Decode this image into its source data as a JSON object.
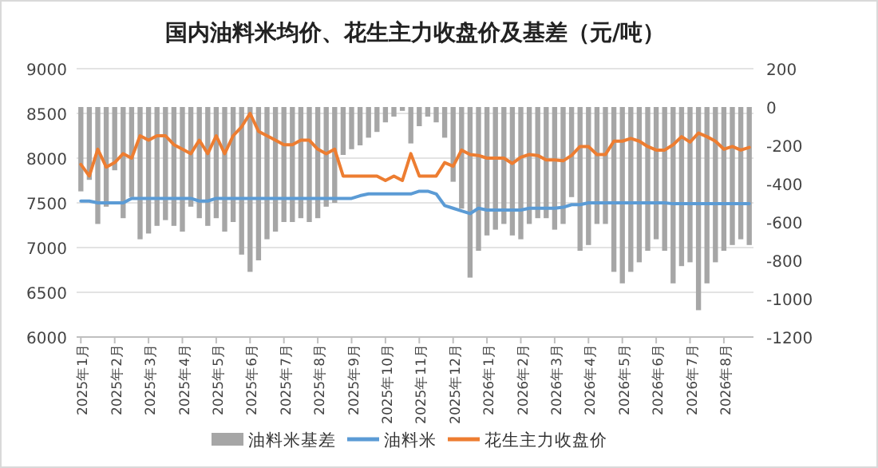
{
  "chart_data": {
    "type": "line",
    "title": "国内油料米均价、花生主力收盘价及基差（元/吨）",
    "categories": [
      "2025年1月",
      null,
      null,
      null,
      "2025年2月",
      null,
      null,
      null,
      "2025年3月",
      null,
      null,
      null,
      "2025年4月",
      null,
      null,
      null,
      "2025年5月",
      null,
      null,
      null,
      "2025年6月",
      null,
      null,
      null,
      "2025年7月",
      null,
      null,
      null,
      "2025年8月",
      null,
      null,
      null,
      "2025年9月",
      null,
      null,
      null,
      "2025年10月",
      null,
      null,
      null,
      "2025年11月",
      null,
      null,
      null,
      "2025年12月",
      null,
      null,
      null,
      "2026年1月",
      null,
      null,
      null,
      "2026年2月",
      null,
      null,
      null,
      "2026年3月",
      null,
      null,
      null,
      "2026年4月",
      null,
      null,
      null,
      "2026年5月",
      null,
      null,
      null,
      "2026年6月",
      null,
      null,
      null,
      "2026年7月",
      null,
      null,
      null,
      "2026年8月",
      null,
      null,
      null
    ],
    "series": [
      {
        "name": "油料米基差",
        "type": "bar",
        "axis": "y2",
        "color": "#a6a6a6",
        "values": [
          -440,
          -380,
          -610,
          -520,
          -330,
          -580,
          -470,
          -690,
          -660,
          -620,
          -590,
          -620,
          -650,
          -520,
          -580,
          -620,
          -580,
          -650,
          -600,
          -770,
          -860,
          -800,
          -690,
          -650,
          -600,
          -600,
          -580,
          -600,
          -580,
          -520,
          -500,
          -250,
          -220,
          -200,
          -160,
          -130,
          -80,
          -50,
          -20,
          -190,
          -100,
          -50,
          -80,
          -160,
          -390,
          -530,
          -890,
          -750,
          -670,
          -640,
          -610,
          -670,
          -690,
          -610,
          -580,
          -580,
          -640,
          -610,
          -470,
          -750,
          -720,
          -610,
          -610,
          -860,
          -920,
          -860,
          -810,
          -750,
          -690,
          -750,
          -920,
          -830,
          -810,
          -1060,
          -920,
          -810,
          -750,
          -720,
          -690,
          -720
        ]
      },
      {
        "name": "油料米",
        "color": "#5b9bd5",
        "values": [
          7520,
          7520,
          7500,
          7500,
          7500,
          7500,
          7550,
          7550,
          7550,
          7550,
          7550,
          7550,
          7550,
          7550,
          7520,
          7520,
          7550,
          7550,
          7550,
          7550,
          7550,
          7550,
          7550,
          7550,
          7550,
          7550,
          7550,
          7550,
          7550,
          7550,
          7550,
          7550,
          7550,
          7580,
          7600,
          7600,
          7600,
          7600,
          7600,
          7600,
          7630,
          7630,
          7600,
          7470,
          7440,
          7410,
          7380,
          7440,
          7420,
          7420,
          7420,
          7420,
          7420,
          7440,
          7440,
          7440,
          7440,
          7450,
          7480,
          7480,
          7500,
          7500,
          7500,
          7500,
          7500,
          7500,
          7500,
          7500,
          7500,
          7500,
          7490,
          7490,
          7490,
          7490,
          7490,
          7490,
          7490,
          7490,
          7490,
          7490
        ]
      },
      {
        "name": "花生主力收盘价",
        "color": "#ed7d31",
        "values": [
          7930,
          7800,
          8100,
          7900,
          7950,
          8050,
          8000,
          8250,
          8200,
          8250,
          8250,
          8150,
          8100,
          8050,
          8200,
          8050,
          8250,
          8050,
          8250,
          8350,
          8500,
          8300,
          8250,
          8200,
          8150,
          8150,
          8200,
          8200,
          8100,
          8050,
          8100,
          7800,
          7800,
          7800,
          7800,
          7800,
          7750,
          7800,
          7750,
          8050,
          7800,
          7800,
          7800,
          7950,
          7910,
          8090,
          8040,
          8030,
          8000,
          8000,
          8000,
          7940,
          8010,
          8040,
          8030,
          7980,
          7980,
          7970,
          8030,
          8130,
          8130,
          8040,
          8040,
          8190,
          8190,
          8220,
          8190,
          8130,
          8090,
          8090,
          8150,
          8240,
          8180,
          8280,
          8240,
          8190,
          8100,
          8130,
          8090,
          8120
        ]
      }
    ],
    "ylim": [
      6000,
      9000
    ],
    "yticks": [
      6000,
      6500,
      7000,
      7500,
      8000,
      8500,
      9000
    ],
    "y2lim": [
      -1200,
      200
    ],
    "y2ticks": [
      -1200,
      -1000,
      -800,
      -600,
      -400,
      -200,
      0,
      200
    ],
    "grid": "y",
    "legend": "bottom"
  }
}
